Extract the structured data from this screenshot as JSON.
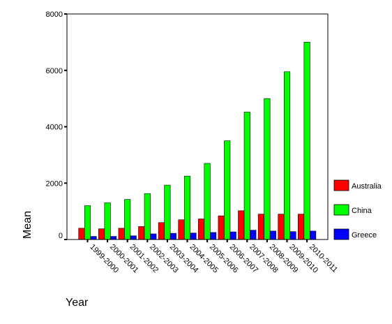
{
  "chart_data": {
    "type": "bar",
    "title": "",
    "xlabel": "Year",
    "ylabel": "Mean",
    "ylim": [
      0,
      8000
    ],
    "yticks": [
      0,
      2000,
      4000,
      6000,
      8000
    ],
    "grid": false,
    "legend_position": "right",
    "categories": [
      "1999-2000",
      "2000-2001",
      "2001-2002",
      "2002-2003",
      "2003-2004",
      "2004-2005",
      "2005-2006",
      "2006-2007",
      "2007-2008",
      "2008-2009",
      "2009-2010",
      "2010-2011"
    ],
    "series": [
      {
        "name": "Australia",
        "color": "#ff0000",
        "values": [
          400,
          380,
          400,
          460,
          600,
          700,
          730,
          840,
          1020,
          900,
          900,
          900
        ]
      },
      {
        "name": "China",
        "color": "#00ff00",
        "values": [
          1200,
          1300,
          1420,
          1630,
          1930,
          2250,
          2700,
          3500,
          4520,
          5000,
          5950,
          7000
        ]
      },
      {
        "name": "Greece",
        "color": "#0000ff",
        "values": [
          110,
          110,
          130,
          200,
          220,
          230,
          250,
          270,
          330,
          300,
          280,
          300
        ]
      }
    ]
  }
}
